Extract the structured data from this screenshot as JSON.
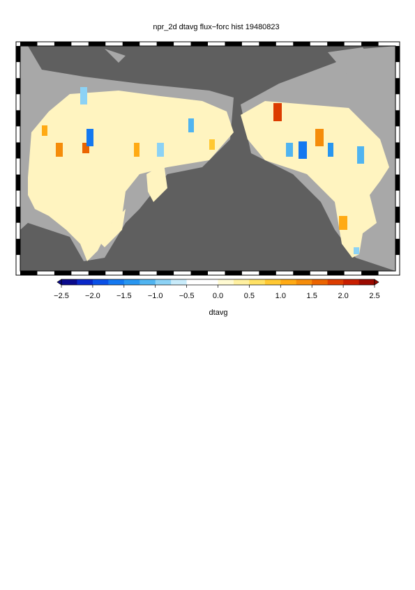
{
  "title": "npr_2d dtavg flux−forc hist 19480823",
  "colorbar": {
    "label": "dtavg",
    "lim": [
      -2.5,
      2.5
    ],
    "colors": [
      "#0a0a8c",
      "#0a28c8",
      "#0a50e6",
      "#1478f0",
      "#2896f0",
      "#50b4f0",
      "#8cd2f5",
      "#c8ebfa",
      "#ffffff",
      "#ffffff",
      "#fffad2",
      "#fff0a0",
      "#ffe164",
      "#ffc832",
      "#ffaa14",
      "#f58c0a",
      "#eb6400",
      "#dc3c00",
      "#c81e00",
      "#9b0a00"
    ],
    "ticks": [
      {
        "value": -2.5,
        "label": "−2.5"
      },
      {
        "value": -2,
        "label": "−2.0"
      },
      {
        "value": -1.5,
        "label": "−1.5"
      },
      {
        "value": -1,
        "label": "−1.0"
      },
      {
        "value": -0.5,
        "label": "−0.5"
      },
      {
        "value": 0,
        "label": "0.0"
      },
      0.5,
      {
        "value": 1,
        "label": "1.0"
      },
      1.5,
      {
        "value": 2,
        "label": "2.0"
      },
      2.5
    ]
  }
}
